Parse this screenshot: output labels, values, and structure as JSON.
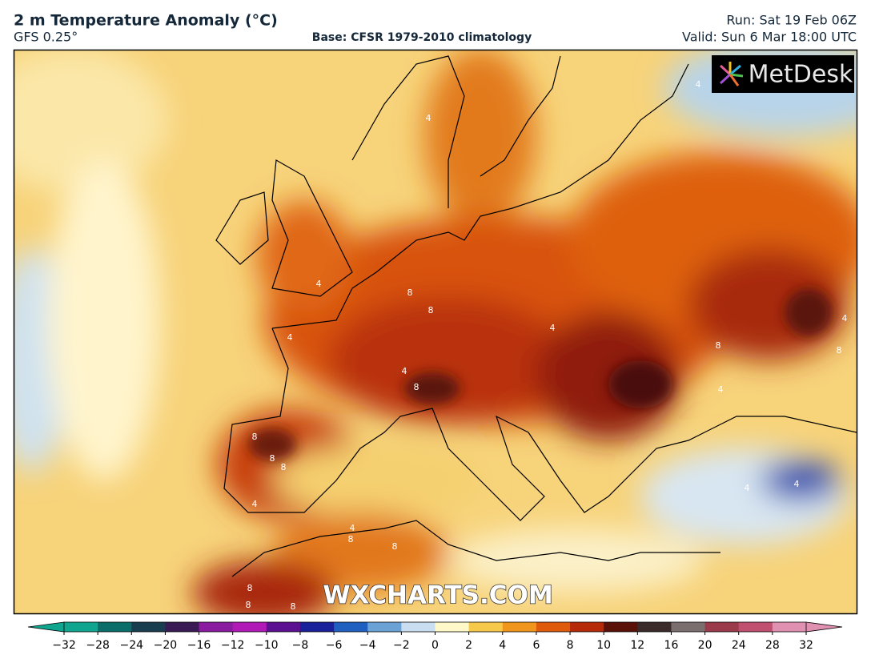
{
  "header": {
    "title": "2 m Temperature Anomaly (°C)",
    "model": "GFS 0.25°",
    "base": "Base: CFSR 1979-2010 climatology",
    "run": "Run: Sat 19 Feb 06Z",
    "valid": "Valid: Sun 6 Mar 18:00 UTC"
  },
  "brand": "MetDesk",
  "watermark": "WXCHARTS.COM",
  "contour_labels": [
    "4",
    "4",
    "4",
    "4",
    "8",
    "8",
    "4",
    "8",
    "8",
    "8",
    "8",
    "8",
    "4",
    "8",
    "8",
    "4",
    "8",
    "4",
    "4",
    "8",
    "8",
    "4",
    "4",
    "8",
    "4"
  ],
  "colorbar": {
    "ticks": [
      {
        "value": -32,
        "label": "−32"
      },
      {
        "value": -28,
        "label": "−28"
      },
      {
        "value": -24,
        "label": "−24"
      },
      {
        "value": -20,
        "label": "−20"
      },
      {
        "value": -16,
        "label": "−16"
      },
      {
        "value": -12,
        "label": "−12"
      },
      {
        "value": -10,
        "label": "−10"
      },
      {
        "value": -8,
        "label": "−8"
      },
      {
        "value": -6,
        "label": "−6"
      },
      {
        "value": -4,
        "label": "−4"
      },
      {
        "value": -2,
        "label": "−2"
      },
      0,
      2,
      4,
      6,
      8,
      10,
      12,
      16,
      20,
      24,
      28,
      32
    ],
    "colors": [
      "#0fa58f",
      "#0a6d6a",
      "#173d4f",
      "#3a1a55",
      "#8a1aa0",
      "#b019b5",
      "#5a1090",
      "#1a1f9a",
      "#1f5fc0",
      "#6aa2d6",
      "#c9def0",
      "#fff8c8",
      "#f7c94a",
      "#f0961c",
      "#e05a0c",
      "#b62a0a",
      "#5a1208",
      "#3a2a2a",
      "#7a6e6e",
      "#9a3a4a",
      "#c05070",
      "#e090b0"
    ]
  }
}
